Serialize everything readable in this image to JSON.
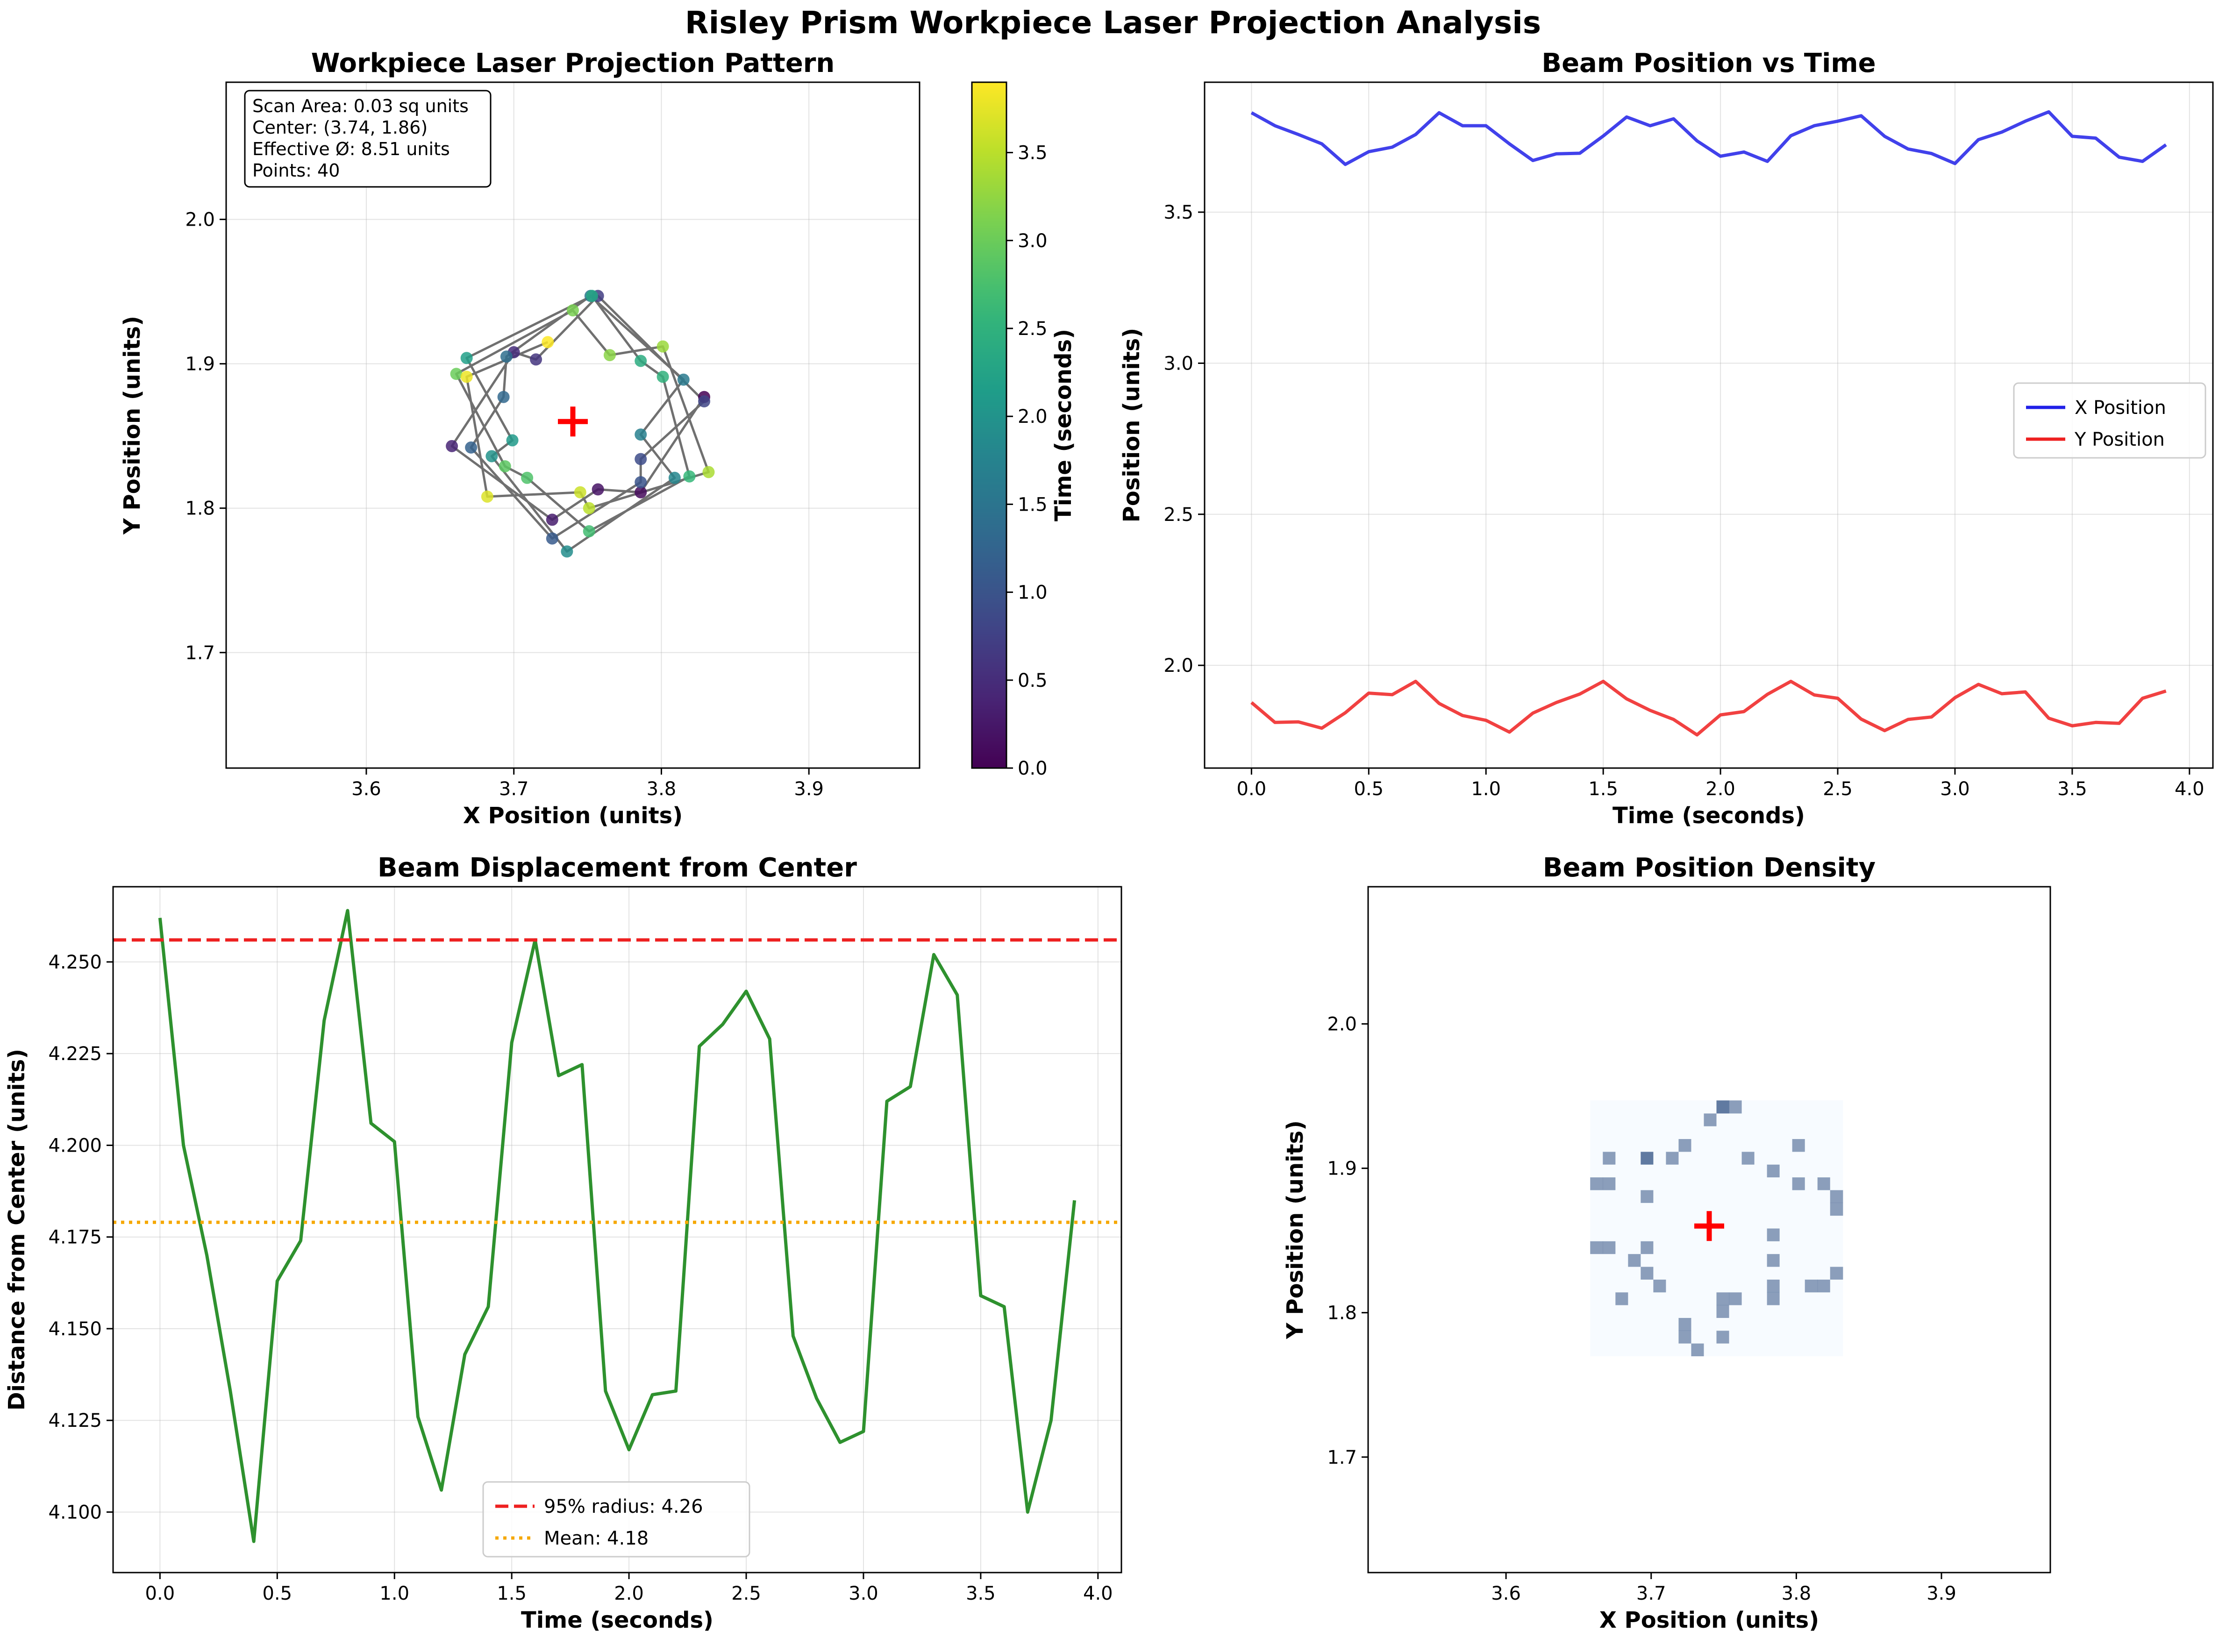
{
  "title": "Risley Prism Workpiece Laser Projection Analysis",
  "colors": {
    "x_series": "#2020e8",
    "y_series": "#ee2020",
    "displacement": "#2e912e",
    "radius_line": "#ee2020",
    "mean_line": "#f5a800",
    "center_marker": "#ff0000",
    "path_line": "#707070"
  },
  "chart_data": [
    {
      "id": "projection",
      "type": "scatter",
      "title": "Workpiece Laser Projection Pattern",
      "xlabel": "X Position (units)",
      "ylabel": "Y Position (units)",
      "xlim": [
        3.505,
        3.975
      ],
      "ylim": [
        1.62,
        2.095
      ],
      "xticks": [
        "3.6",
        "3.7",
        "3.8",
        "3.9"
      ],
      "yticks": [
        "1.7",
        "1.8",
        "1.9",
        "2.0"
      ],
      "grid": true,
      "center": [
        3.74,
        1.86
      ],
      "info_lines": [
        "Scan Area: 0.03 sq units",
        "Center: (3.74, 1.86)",
        "Effective Ø: 8.51 units",
        "Points: 40"
      ],
      "colorbar": {
        "label": "Time (seconds)",
        "colormap": "viridis",
        "range": [
          0,
          3.9
        ],
        "ticks": [
          "0.0",
          "0.5",
          "1.0",
          "1.5",
          "2.0",
          "2.5",
          "3.0",
          "3.5"
        ]
      },
      "points": {
        "t": [
          0.0,
          0.1,
          0.2,
          0.3,
          0.4,
          0.5,
          0.6,
          0.7,
          0.8,
          0.9,
          1.0,
          1.1,
          1.2,
          1.3,
          1.4,
          1.5,
          1.6,
          1.7,
          1.8,
          1.9,
          2.0,
          2.1,
          2.2,
          2.3,
          2.4,
          2.5,
          2.6,
          2.7,
          2.8,
          2.9,
          3.0,
          3.1,
          3.2,
          3.3,
          3.4,
          3.5,
          3.6,
          3.7,
          3.8,
          3.9
        ],
        "x": [
          3.829,
          3.786,
          3.757,
          3.726,
          3.658,
          3.7,
          3.715,
          3.757,
          3.829,
          3.786,
          3.786,
          3.726,
          3.671,
          3.693,
          3.695,
          3.752,
          3.815,
          3.786,
          3.809,
          3.736,
          3.685,
          3.699,
          3.668,
          3.753,
          3.786,
          3.801,
          3.819,
          3.751,
          3.709,
          3.694,
          3.661,
          3.74,
          3.765,
          3.801,
          3.832,
          3.751,
          3.745,
          3.682,
          3.668,
          3.723
        ],
        "y": [
          1.877,
          1.811,
          1.813,
          1.792,
          1.843,
          1.908,
          1.903,
          1.947,
          1.874,
          1.834,
          1.818,
          1.779,
          1.842,
          1.877,
          1.905,
          1.947,
          1.889,
          1.851,
          1.821,
          1.77,
          1.836,
          1.847,
          1.904,
          1.947,
          1.902,
          1.891,
          1.822,
          1.784,
          1.821,
          1.829,
          1.893,
          1.937,
          1.906,
          1.912,
          1.825,
          1.8,
          1.811,
          1.808,
          1.891,
          1.915
        ]
      }
    },
    {
      "id": "position_time",
      "type": "line",
      "title": "Beam Position vs Time",
      "xlabel": "Time (seconds)",
      "ylabel": "Position (units)",
      "xlim": [
        -0.2,
        4.1
      ],
      "ylim": [
        1.66,
        3.93
      ],
      "xticks": [
        "0.0",
        "0.5",
        "1.0",
        "1.5",
        "2.0",
        "2.5",
        "3.0",
        "3.5",
        "4.0"
      ],
      "yticks": [
        "2.0",
        "2.5",
        "3.0",
        "3.5"
      ],
      "grid": true,
      "legend": "center-right",
      "x": [
        0.0,
        0.1,
        0.2,
        0.3,
        0.4,
        0.5,
        0.6,
        0.7,
        0.8,
        0.9,
        1.0,
        1.1,
        1.2,
        1.3,
        1.4,
        1.5,
        1.6,
        1.7,
        1.8,
        1.9,
        2.0,
        2.1,
        2.2,
        2.3,
        2.4,
        2.5,
        2.6,
        2.7,
        2.8,
        2.9,
        3.0,
        3.1,
        3.2,
        3.3,
        3.4,
        3.5,
        3.6,
        3.7,
        3.8,
        3.9
      ],
      "series": [
        {
          "name": "X Position",
          "values": [
            3.829,
            3.786,
            3.757,
            3.726,
            3.658,
            3.7,
            3.715,
            3.757,
            3.829,
            3.786,
            3.786,
            3.726,
            3.671,
            3.693,
            3.695,
            3.752,
            3.815,
            3.786,
            3.809,
            3.736,
            3.685,
            3.699,
            3.668,
            3.753,
            3.786,
            3.801,
            3.819,
            3.751,
            3.709,
            3.694,
            3.661,
            3.74,
            3.765,
            3.801,
            3.832,
            3.751,
            3.745,
            3.682,
            3.668,
            3.723
          ]
        },
        {
          "name": "Y Position",
          "values": [
            1.877,
            1.811,
            1.813,
            1.792,
            1.843,
            1.908,
            1.903,
            1.947,
            1.874,
            1.834,
            1.818,
            1.779,
            1.842,
            1.877,
            1.905,
            1.947,
            1.889,
            1.851,
            1.821,
            1.77,
            1.836,
            1.847,
            1.904,
            1.947,
            1.902,
            1.891,
            1.822,
            1.784,
            1.821,
            1.829,
            1.893,
            1.937,
            1.906,
            1.912,
            1.825,
            1.8,
            1.811,
            1.808,
            1.891,
            1.915
          ]
        }
      ]
    },
    {
      "id": "displacement",
      "type": "line",
      "title": "Beam Displacement from Center",
      "xlabel": "Time (seconds)",
      "ylabel": "Distance from Center (units)",
      "xlim": [
        -0.2,
        4.1
      ],
      "ylim": [
        4.0835,
        4.2705
      ],
      "xticks": [
        "0.0",
        "0.5",
        "1.0",
        "1.5",
        "2.0",
        "2.5",
        "3.0",
        "3.5",
        "4.0"
      ],
      "yticks": [
        "4.100",
        "4.125",
        "4.150",
        "4.175",
        "4.200",
        "4.225",
        "4.250"
      ],
      "grid": true,
      "legend": "lower-center",
      "x": [
        0.0,
        0.1,
        0.2,
        0.3,
        0.4,
        0.5,
        0.6,
        0.7,
        0.8,
        0.9,
        1.0,
        1.1,
        1.2,
        1.3,
        1.4,
        1.5,
        1.6,
        1.7,
        1.8,
        1.9,
        2.0,
        2.1,
        2.2,
        2.3,
        2.4,
        2.5,
        2.6,
        2.7,
        2.8,
        2.9,
        3.0,
        3.1,
        3.2,
        3.3,
        3.4,
        3.5,
        3.6,
        3.7,
        3.8,
        3.9
      ],
      "values": [
        4.262,
        4.2,
        4.17,
        4.133,
        4.092,
        4.163,
        4.174,
        4.234,
        4.264,
        4.206,
        4.201,
        4.126,
        4.106,
        4.143,
        4.156,
        4.228,
        4.256,
        4.219,
        4.222,
        4.133,
        4.117,
        4.132,
        4.133,
        4.227,
        4.233,
        4.242,
        4.229,
        4.148,
        4.131,
        4.119,
        4.122,
        4.212,
        4.216,
        4.252,
        4.241,
        4.159,
        4.156,
        4.1,
        4.125,
        4.185
      ],
      "reference_lines": [
        {
          "name": "95% radius: 4.26",
          "value": 4.256,
          "style": "dashed"
        },
        {
          "name": "Mean: 4.18",
          "value": 4.179,
          "style": "dotted"
        }
      ]
    },
    {
      "id": "density",
      "type": "heatmap",
      "title": "Beam Position Density",
      "xlabel": "X Position (units)",
      "ylabel": "Y Position (units)",
      "xlim": [
        3.505,
        3.975
      ],
      "ylim": [
        1.62,
        2.095
      ],
      "xticks": [
        "3.6",
        "3.7",
        "3.8",
        "3.9"
      ],
      "yticks": [
        "1.7",
        "1.8",
        "1.9",
        "2.0"
      ],
      "colormap": "Blues",
      "bins": 20,
      "x_range": [
        3.658,
        3.832
      ],
      "y_range": [
        1.77,
        1.947
      ],
      "center": [
        3.74,
        1.86
      ]
    }
  ]
}
